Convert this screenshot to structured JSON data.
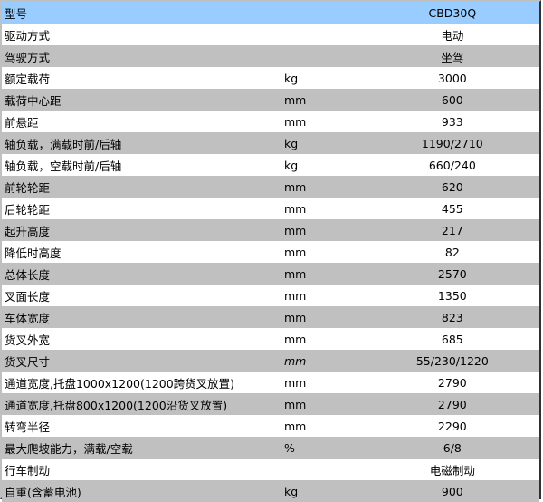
{
  "colors": {
    "header": "#99ccff",
    "stripe": "#c0c0c0",
    "white": "#ffffff"
  },
  "header": {
    "label": "型号",
    "unit": "",
    "value": "CBD30Q"
  },
  "rows": [
    {
      "label": "驱动方式",
      "unit": "",
      "value": "电动"
    },
    {
      "label": "驾驶方式",
      "unit": "",
      "value": "坐驾"
    },
    {
      "label": "额定载荷",
      "unit": "kg",
      "value": "3000"
    },
    {
      "label": "载荷中心距",
      "unit": "mm",
      "value": "600"
    },
    {
      "label": "前悬距",
      "unit": "mm",
      "value": "933"
    },
    {
      "label": "轴负载，满载时前/后轴",
      "unit": "kg",
      "value": "1190/2710"
    },
    {
      "label": "轴负载，空载时前/后轴",
      "unit": "kg",
      "value": "660/240"
    },
    {
      "label": "前轮轮距",
      "unit": "mm",
      "value": "620"
    },
    {
      "label": "后轮轮距",
      "unit": "mm",
      "value": "455"
    },
    {
      "label": "起升高度",
      "unit": "mm",
      "value": "217"
    },
    {
      "label": "降低时高度",
      "unit": "mm",
      "value": "82"
    },
    {
      "label": "总体长度",
      "unit": "mm",
      "value": "2570"
    },
    {
      "label": "叉面长度",
      "unit": "mm",
      "value": "1350"
    },
    {
      "label": "车体宽度",
      "unit": "mm",
      "value": "823"
    },
    {
      "label": "货叉外宽",
      "unit": "mm",
      "value": "685"
    },
    {
      "label": "货叉尺寸",
      "unit": "mm",
      "value": "55/230/1220",
      "italic_unit": true
    },
    {
      "label": "通道宽度,托盘1000x1200(1200跨货叉放置)",
      "unit": "mm",
      "value": "2790"
    },
    {
      "label": "通道宽度,托盘800x1200(1200沿货叉放置)",
      "unit": "mm",
      "value": "2790"
    },
    {
      "label": "转弯半径",
      "unit": "mm",
      "value": "2290"
    },
    {
      "label": "最大爬坡能力，满载/空载",
      "unit": "%",
      "value": "6/8"
    },
    {
      "label": "行车制动",
      "unit": "",
      "value": "电磁制动"
    },
    {
      "label": "自重(含蓄电池)",
      "unit": "kg",
      "value": "900"
    }
  ]
}
